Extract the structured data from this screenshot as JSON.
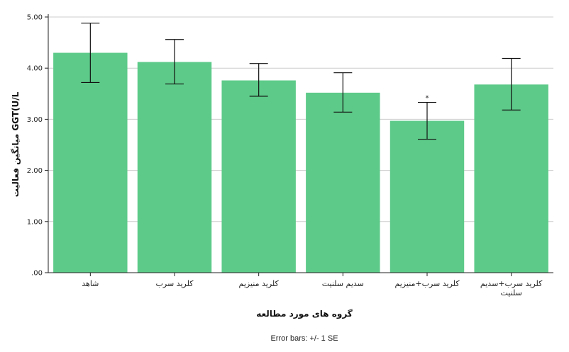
{
  "chart_data": {
    "type": "bar",
    "categories": [
      "شاهد",
      "کلرید سرب",
      "کلرید منیزیم",
      "سدیم سلنیت",
      "کلرید سرب+منیزیم",
      [
        "کلرید سرب+سدیم",
        "سلنیت"
      ]
    ],
    "values": [
      4.3,
      4.12,
      3.76,
      3.52,
      2.97,
      3.68
    ],
    "error_low": [
      3.72,
      3.69,
      3.45,
      3.14,
      2.61,
      3.18
    ],
    "error_high": [
      4.88,
      4.56,
      4.09,
      3.91,
      3.33,
      4.19
    ],
    "annotations": [
      "",
      "",
      "",
      "",
      "*",
      ""
    ],
    "ylim": [
      0,
      5
    ],
    "yticks": [
      0,
      1,
      2,
      3,
      4,
      5
    ],
    "ytick_labels": [
      ".00",
      "1.00",
      "2.00",
      "3.00",
      "4.00",
      "5.00"
    ],
    "ylabel": "میانگین فعالیت GGT(U/L",
    "xlabel": "گروه های مورد مطالعه",
    "error_note": "Error bars: +/- 1 SE",
    "grid": "horizontal",
    "bar_color": "#5dca89",
    "gridline_color": "#cccccc"
  }
}
